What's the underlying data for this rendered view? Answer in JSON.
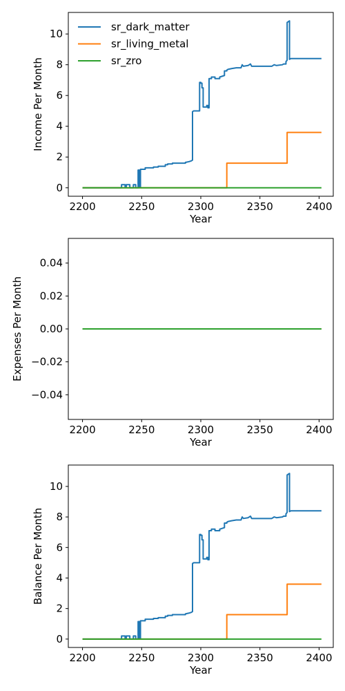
{
  "chart_data": [
    {
      "type": "line",
      "xlabel": "Year",
      "ylabel": "Income Per Month",
      "xlim": [
        2188,
        2412
      ],
      "ylim": [
        -0.55,
        11.4
      ],
      "xticks": [
        2200,
        2250,
        2300,
        2350,
        2400
      ],
      "yticks": [
        0,
        2,
        4,
        6,
        8,
        10
      ],
      "ytick_labels": [
        "0",
        "2",
        "4",
        "6",
        "8",
        "10"
      ],
      "grid": false,
      "legend": "upper-left",
      "series": [
        {
          "name": "sr_dark_matter",
          "color": "#1f77b4",
          "points": [
            [
              2200,
              0
            ],
            [
              2233,
              0
            ],
            [
              2233,
              0.2
            ],
            [
              2236,
              0.2
            ],
            [
              2236,
              0.05
            ],
            [
              2237,
              0.05
            ],
            [
              2237,
              0.2
            ],
            [
              2240,
              0.2
            ],
            [
              2240,
              0
            ],
            [
              2243,
              0
            ],
            [
              2243,
              0.2
            ],
            [
              2245,
              0.2
            ],
            [
              2245,
              0
            ],
            [
              2247,
              0
            ],
            [
              2247,
              1.15
            ],
            [
              2248,
              1.15
            ],
            [
              2248,
              0.05
            ],
            [
              2249,
              0.05
            ],
            [
              2249,
              1.2
            ],
            [
              2253,
              1.2
            ],
            [
              2253,
              1.3
            ],
            [
              2260,
              1.3
            ],
            [
              2260,
              1.35
            ],
            [
              2264,
              1.35
            ],
            [
              2264,
              1.4
            ],
            [
              2270,
              1.4
            ],
            [
              2270,
              1.5
            ],
            [
              2272,
              1.5
            ],
            [
              2272,
              1.55
            ],
            [
              2276,
              1.55
            ],
            [
              2276,
              1.6
            ],
            [
              2287,
              1.6
            ],
            [
              2287,
              1.65
            ],
            [
              2290,
              1.7
            ],
            [
              2292,
              1.75
            ],
            [
              2293,
              1.8
            ],
            [
              2293,
              4.95
            ],
            [
              2294,
              5.0
            ],
            [
              2299,
              5.0
            ],
            [
              2299,
              6.85
            ],
            [
              2300,
              6.85
            ],
            [
              2300,
              6.8
            ],
            [
              2301,
              6.8
            ],
            [
              2301,
              6.5
            ],
            [
              2302,
              6.5
            ],
            [
              2302,
              5.25
            ],
            [
              2305,
              5.25
            ],
            [
              2305,
              5.35
            ],
            [
              2306,
              5.35
            ],
            [
              2306,
              5.2
            ],
            [
              2307,
              5.2
            ],
            [
              2307,
              7.1
            ],
            [
              2309,
              7.1
            ],
            [
              2309,
              7.2
            ],
            [
              2312,
              7.2
            ],
            [
              2312,
              7.1
            ],
            [
              2316,
              7.1
            ],
            [
              2316,
              7.2
            ],
            [
              2318,
              7.25
            ],
            [
              2320,
              7.3
            ],
            [
              2320,
              7.6
            ],
            [
              2322,
              7.6
            ],
            [
              2322,
              7.65
            ],
            [
              2323,
              7.7
            ],
            [
              2326,
              7.75
            ],
            [
              2330,
              7.8
            ],
            [
              2334,
              7.8
            ],
            [
              2335,
              8.0
            ],
            [
              2336,
              7.9
            ],
            [
              2340,
              7.95
            ],
            [
              2342,
              8.05
            ],
            [
              2343,
              7.9
            ],
            [
              2350,
              7.9
            ],
            [
              2360,
              7.9
            ],
            [
              2362,
              8.0
            ],
            [
              2364,
              7.95
            ],
            [
              2369,
              8.0
            ],
            [
              2370,
              8.05
            ],
            [
              2372,
              8.05
            ],
            [
              2372,
              8.2
            ],
            [
              2373,
              8.3
            ],
            [
              2373,
              10.75
            ],
            [
              2374,
              10.8
            ],
            [
              2375,
              10.85
            ],
            [
              2375,
              8.35
            ],
            [
              2376,
              8.4
            ],
            [
              2402,
              8.4
            ]
          ]
        },
        {
          "name": "sr_living_metal",
          "color": "#ff7f0e",
          "points": [
            [
              2200,
              0
            ],
            [
              2322,
              0
            ],
            [
              2322,
              1.6
            ],
            [
              2373,
              1.6
            ],
            [
              2373,
              3.6
            ],
            [
              2402,
              3.6
            ]
          ]
        },
        {
          "name": "sr_zro",
          "color": "#2ca02c",
          "points": [
            [
              2200,
              0
            ],
            [
              2402,
              0
            ]
          ]
        }
      ]
    },
    {
      "type": "line",
      "xlabel": "Year",
      "ylabel": "Expenses Per Month",
      "xlim": [
        2188,
        2412
      ],
      "ylim": [
        -0.055,
        0.055
      ],
      "xticks": [
        2200,
        2250,
        2300,
        2350,
        2400
      ],
      "yticks": [
        -0.04,
        -0.02,
        0,
        0.02,
        0.04
      ],
      "ytick_labels": [
        "−0.04",
        "−0.02",
        "0.00",
        "0.02",
        "0.04"
      ],
      "grid": false,
      "series": [
        {
          "color": "#1f77b4",
          "points": [
            [
              2200,
              0
            ],
            [
              2402,
              0
            ]
          ]
        },
        {
          "color": "#ff7f0e",
          "points": [
            [
              2200,
              0
            ],
            [
              2402,
              0
            ]
          ]
        },
        {
          "color": "#2ca02c",
          "points": [
            [
              2200,
              0
            ],
            [
              2402,
              0
            ]
          ]
        }
      ]
    },
    {
      "type": "line",
      "xlabel": "Year",
      "ylabel": "Balance Per Month",
      "xlim": [
        2188,
        2412
      ],
      "ylim": [
        -0.55,
        11.4
      ],
      "xticks": [
        2200,
        2250,
        2300,
        2350,
        2400
      ],
      "yticks": [
        0,
        2,
        4,
        6,
        8,
        10
      ],
      "ytick_labels": [
        "0",
        "2",
        "4",
        "6",
        "8",
        "10"
      ],
      "grid": false,
      "series": [
        {
          "color": "#1f77b4",
          "points": [
            [
              2200,
              0
            ],
            [
              2233,
              0
            ],
            [
              2233,
              0.2
            ],
            [
              2236,
              0.2
            ],
            [
              2236,
              0.05
            ],
            [
              2237,
              0.05
            ],
            [
              2237,
              0.2
            ],
            [
              2240,
              0.2
            ],
            [
              2240,
              0
            ],
            [
              2243,
              0
            ],
            [
              2243,
              0.2
            ],
            [
              2245,
              0.2
            ],
            [
              2245,
              0
            ],
            [
              2247,
              0
            ],
            [
              2247,
              1.15
            ],
            [
              2248,
              1.15
            ],
            [
              2248,
              0.05
            ],
            [
              2249,
              0.05
            ],
            [
              2249,
              1.2
            ],
            [
              2253,
              1.2
            ],
            [
              2253,
              1.3
            ],
            [
              2260,
              1.3
            ],
            [
              2260,
              1.35
            ],
            [
              2264,
              1.35
            ],
            [
              2264,
              1.4
            ],
            [
              2270,
              1.4
            ],
            [
              2270,
              1.5
            ],
            [
              2272,
              1.5
            ],
            [
              2272,
              1.55
            ],
            [
              2276,
              1.55
            ],
            [
              2276,
              1.6
            ],
            [
              2287,
              1.6
            ],
            [
              2287,
              1.65
            ],
            [
              2290,
              1.7
            ],
            [
              2292,
              1.75
            ],
            [
              2293,
              1.8
            ],
            [
              2293,
              4.95
            ],
            [
              2294,
              5.0
            ],
            [
              2299,
              5.0
            ],
            [
              2299,
              6.85
            ],
            [
              2300,
              6.85
            ],
            [
              2300,
              6.8
            ],
            [
              2301,
              6.8
            ],
            [
              2301,
              6.5
            ],
            [
              2302,
              6.5
            ],
            [
              2302,
              5.25
            ],
            [
              2305,
              5.25
            ],
            [
              2305,
              5.35
            ],
            [
              2306,
              5.35
            ],
            [
              2306,
              5.2
            ],
            [
              2307,
              5.2
            ],
            [
              2307,
              7.1
            ],
            [
              2309,
              7.1
            ],
            [
              2309,
              7.2
            ],
            [
              2312,
              7.2
            ],
            [
              2312,
              7.1
            ],
            [
              2316,
              7.1
            ],
            [
              2316,
              7.2
            ],
            [
              2318,
              7.25
            ],
            [
              2320,
              7.3
            ],
            [
              2320,
              7.6
            ],
            [
              2322,
              7.6
            ],
            [
              2322,
              7.65
            ],
            [
              2323,
              7.7
            ],
            [
              2326,
              7.75
            ],
            [
              2330,
              7.8
            ],
            [
              2334,
              7.8
            ],
            [
              2335,
              8.0
            ],
            [
              2336,
              7.9
            ],
            [
              2340,
              7.95
            ],
            [
              2342,
              8.05
            ],
            [
              2343,
              7.9
            ],
            [
              2350,
              7.9
            ],
            [
              2360,
              7.9
            ],
            [
              2362,
              8.0
            ],
            [
              2364,
              7.95
            ],
            [
              2369,
              8.0
            ],
            [
              2370,
              8.05
            ],
            [
              2372,
              8.05
            ],
            [
              2372,
              8.2
            ],
            [
              2373,
              8.3
            ],
            [
              2373,
              10.75
            ],
            [
              2374,
              10.8
            ],
            [
              2375,
              10.85
            ],
            [
              2375,
              8.35
            ],
            [
              2376,
              8.4
            ],
            [
              2402,
              8.4
            ]
          ]
        },
        {
          "color": "#ff7f0e",
          "points": [
            [
              2200,
              0
            ],
            [
              2322,
              0
            ],
            [
              2322,
              1.6
            ],
            [
              2373,
              1.6
            ],
            [
              2373,
              3.6
            ],
            [
              2402,
              3.6
            ]
          ]
        },
        {
          "color": "#2ca02c",
          "points": [
            [
              2200,
              0
            ],
            [
              2402,
              0
            ]
          ]
        }
      ]
    }
  ]
}
